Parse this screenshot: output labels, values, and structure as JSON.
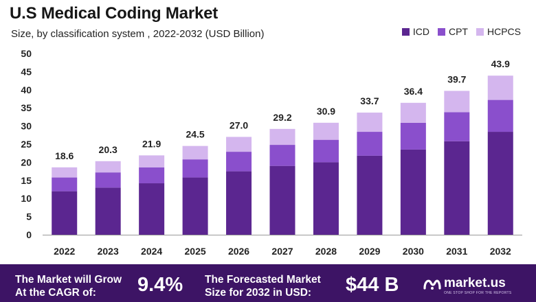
{
  "header": {
    "title": "U.S Medical Coding Market",
    "subtitle": "Size, by classification system , 2022-2032 (USD Billion)"
  },
  "legend": [
    {
      "label": "ICD",
      "color": "#5b2690"
    },
    {
      "label": "CPT",
      "color": "#8a4fcc"
    },
    {
      "label": "HCPCS",
      "color": "#d4b6ee"
    }
  ],
  "chart_data": {
    "type": "bar",
    "stacked": true,
    "categories": [
      "2022",
      "2023",
      "2024",
      "2025",
      "2026",
      "2027",
      "2028",
      "2029",
      "2030",
      "2031",
      "2032"
    ],
    "series": [
      {
        "name": "ICD",
        "color": "#5b2690",
        "values": [
          12.0,
          13.0,
          14.2,
          15.8,
          17.5,
          19.0,
          20.0,
          21.8,
          23.5,
          25.8,
          28.4
        ]
      },
      {
        "name": "CPT",
        "color": "#8a4fcc",
        "values": [
          3.8,
          4.2,
          4.4,
          5.0,
          5.4,
          5.8,
          6.2,
          6.6,
          7.4,
          8.0,
          8.8
        ]
      },
      {
        "name": "HCPCS",
        "color": "#d4b6ee",
        "values": [
          2.8,
          3.1,
          3.3,
          3.7,
          4.1,
          4.4,
          4.7,
          5.3,
          5.5,
          5.9,
          6.7
        ]
      }
    ],
    "totals": [
      "18.6",
      "20.3",
      "21.9",
      "24.5",
      "27.0",
      "29.2",
      "30.9",
      "33.7",
      "36.4",
      "39.7",
      "43.9"
    ],
    "ylim": [
      0,
      50
    ],
    "yticks": [
      0,
      5,
      10,
      15,
      20,
      25,
      30,
      35,
      40,
      45,
      50
    ],
    "grid": false,
    "legend_position": "top-right"
  },
  "footer": {
    "cagr_label_line1": "The Market will Grow",
    "cagr_label_line2": "At the CAGR of:",
    "cagr_value": "9.4%",
    "forecast_label_line1": "The Forecasted Market",
    "forecast_label_line2": "Size for 2032 in USD:",
    "forecast_value": "$44 B",
    "brand": "market.us",
    "brand_tagline": "ONE STOP SHOP FOR THE REPORTS"
  },
  "colors": {
    "footer_bg": "#3d1465",
    "axis": "#999999"
  }
}
